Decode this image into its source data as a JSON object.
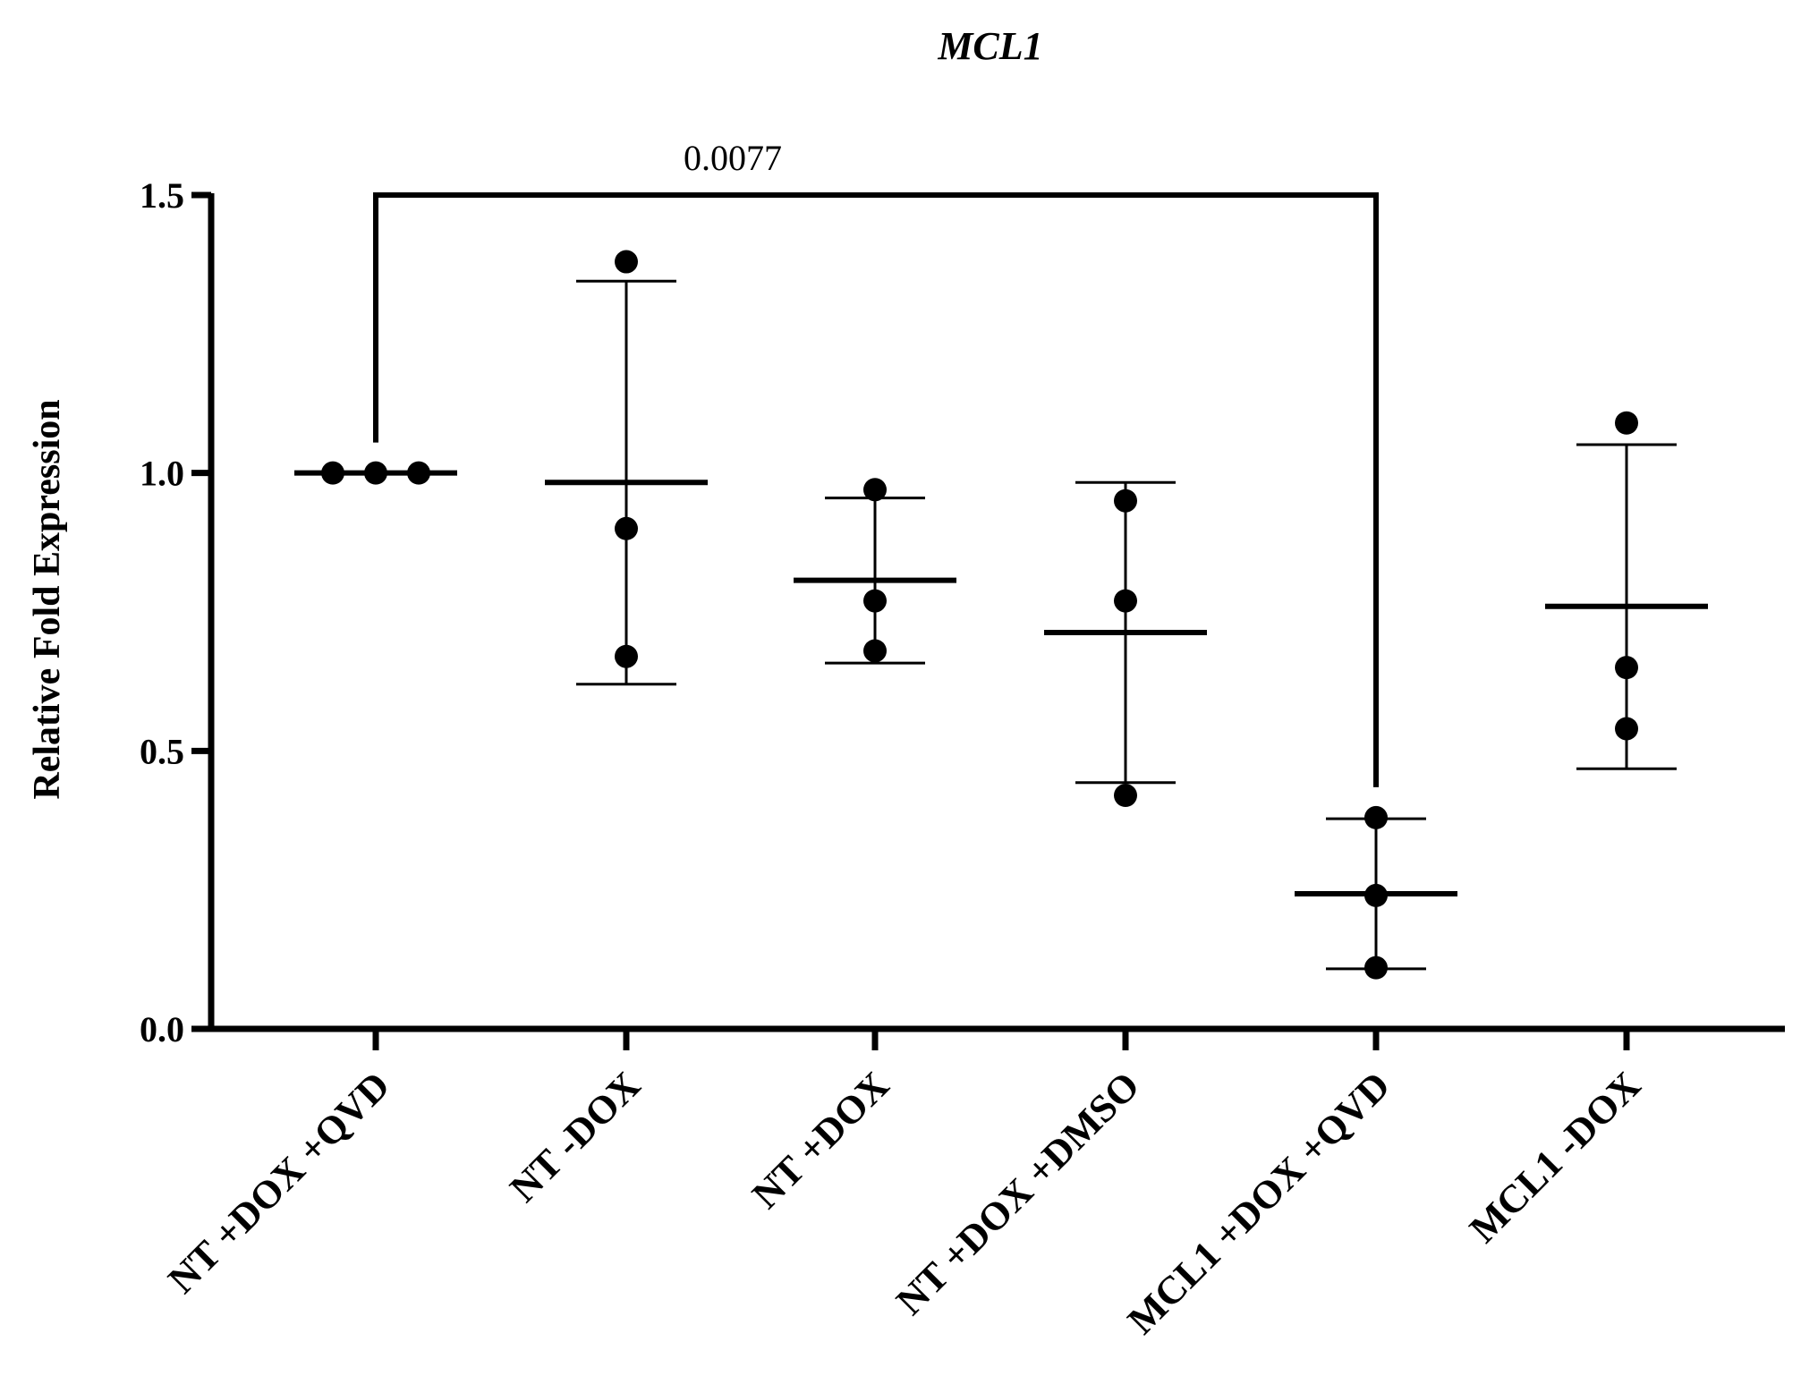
{
  "chart_data": {
    "type": "scatter",
    "title": "MCL1",
    "ylabel": "Relative Fold Expression",
    "xlabel": "",
    "ylim": [
      0,
      1.5
    ],
    "yticks": [
      0.0,
      0.5,
      1.0,
      1.5
    ],
    "ytick_labels": [
      "0.0",
      "0.5",
      "1.0",
      "1.5"
    ],
    "grid": false,
    "legend": "none",
    "categories": [
      "NT +DOX +QVD",
      "NT -DOX",
      "NT +DOX",
      "NT +DOX +DMSO",
      "MCL1 +DOX +QVD",
      "MCL1 -DOX"
    ],
    "groups": [
      {
        "category": "NT +DOX +QVD",
        "points": [
          1.0,
          1.0,
          1.0
        ],
        "mean": 1.0,
        "sd_low": 1.0,
        "sd_high": 1.0
      },
      {
        "category": "NT -DOX",
        "points": [
          1.38,
          0.9,
          0.67
        ],
        "mean": 0.983,
        "sd_low": 0.62,
        "sd_high": 1.345
      },
      {
        "category": "NT +DOX",
        "points": [
          0.97,
          0.77,
          0.68
        ],
        "mean": 0.807,
        "sd_low": 0.658,
        "sd_high": 0.955
      },
      {
        "category": "NT +DOX +DMSO",
        "points": [
          0.95,
          0.77,
          0.42
        ],
        "mean": 0.713,
        "sd_low": 0.443,
        "sd_high": 0.983
      },
      {
        "category": "MCL1 +DOX +QVD",
        "points": [
          0.38,
          0.24,
          0.11
        ],
        "mean": 0.243,
        "sd_low": 0.108,
        "sd_high": 0.378
      },
      {
        "category": "MCL1 -DOX",
        "points": [
          1.09,
          0.65,
          0.54
        ],
        "mean": 0.76,
        "sd_low": 0.468,
        "sd_high": 1.051
      }
    ],
    "annotations": [
      {
        "type": "significance-bracket",
        "from": "NT +DOX +QVD",
        "to": "MCL1 +DOX +QVD",
        "y": 1.5,
        "label": "0.0077"
      }
    ]
  }
}
